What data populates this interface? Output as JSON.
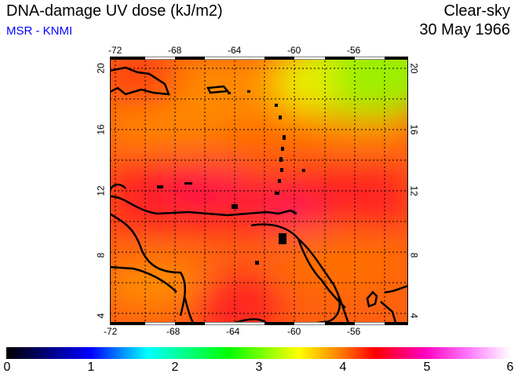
{
  "header": {
    "title": "DNA-damage UV dose (kJ/m2)",
    "source": "MSR - KNMI",
    "condition": "Clear-sky",
    "date": "30 May 1966"
  },
  "map": {
    "lon_ticks": [
      "-72",
      "-68",
      "-64",
      "-60",
      "-56"
    ],
    "lat_ticks": [
      "20",
      "16",
      "12",
      "8",
      "4"
    ],
    "lon_range": [
      -72.4,
      -52.4
    ],
    "lat_range": [
      3.3,
      20.8
    ]
  },
  "colorbar": {
    "labels": [
      "0",
      "1",
      "2",
      "3",
      "4",
      "5",
      "6"
    ],
    "range": [
      0,
      6
    ],
    "colors": [
      "#000000",
      "#0000ff",
      "#00ffff",
      "#00ff00",
      "#ffff00",
      "#ff8000",
      "#ff0000",
      "#ff00c0",
      "#ffffff"
    ]
  }
}
